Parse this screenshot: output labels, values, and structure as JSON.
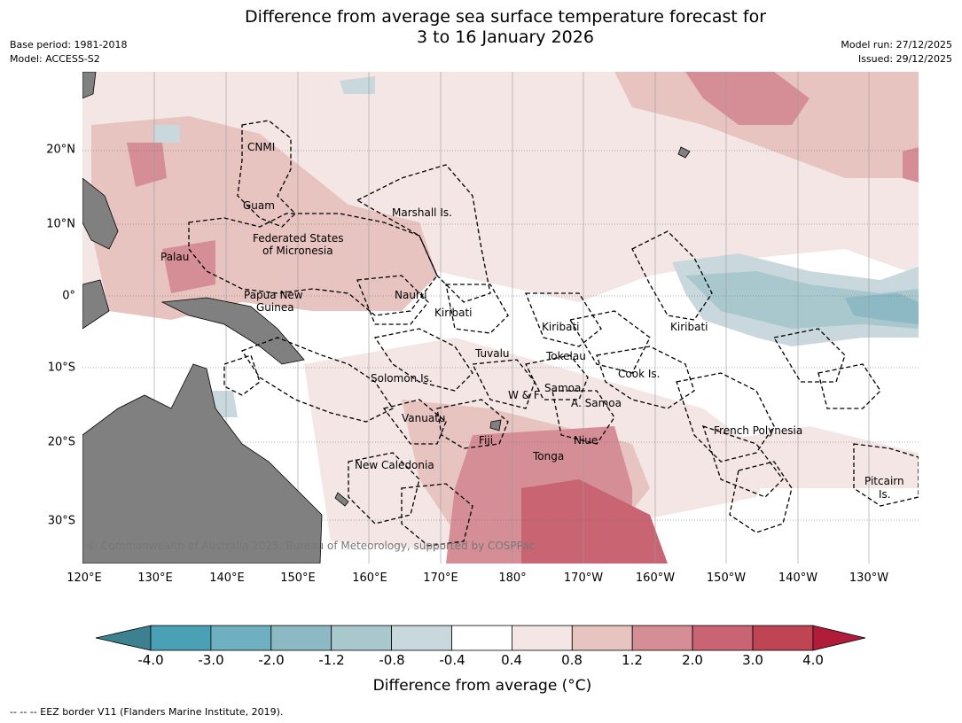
{
  "title_line1": "Difference from average sea surface temperature forecast for",
  "title_line2": "3 to 16 January 2026",
  "meta_left": {
    "base_period": "Base period: 1981-2018",
    "model": "Model: ACCESS-S2"
  },
  "meta_right": {
    "model_run": "Model run: 27/12/2025",
    "issued": "Issued: 29/12/2025"
  },
  "lon_ticks": [
    "120°E",
    "130°E",
    "140°E",
    "150°E",
    "160°E",
    "170°E",
    "180°",
    "170°W",
    "160°W",
    "150°W",
    "140°W",
    "130°W"
  ],
  "lat_ticks": [
    "20°N",
    "10°N",
    "0°",
    "10°S",
    "20°S",
    "30°S"
  ],
  "regions": {
    "cnmi": "CNMI",
    "guam": "Guam",
    "marshall": "Marshall Is.",
    "fsm1": "Federated States",
    "fsm2": "of Micronesia",
    "palau": "Palau",
    "png1": "Papua New",
    "png2": "Guinea",
    "nauru": "Nauru",
    "kiribati_w": "Kiribati",
    "kiribati_c": "Kiribati",
    "kiribati_e": "Kiribati",
    "tuvalu": "Tuvalu",
    "tokelau": "Tokelau",
    "solomon": "Solomon Is.",
    "samoa": "Samoa",
    "wf": "W & F",
    "asamoa": "A. Samoa",
    "cook": "Cook Is.",
    "vanuatu": "Vanuatu",
    "fiji": "Fiji",
    "niue": "Niue",
    "tonga": "Tonga",
    "newcal": "New Caledonia",
    "frpoly": "French Polynesia",
    "pitcairn1": "Pitcairn",
    "pitcairn2": "Is."
  },
  "copyright": "© Commonwealth of Australia 2025, Bureau of Meteorology, supported by COSPPac",
  "colorbar": {
    "labels": [
      "-4.0",
      "-3.0",
      "-2.0",
      "-1.2",
      "-0.8",
      "-0.4",
      "0.4",
      "0.8",
      "1.2",
      "2.0",
      "3.0",
      "4.0"
    ],
    "colors": [
      "#3d8190",
      "#4aa1b5",
      "#6eb0c0",
      "#8cb9c4",
      "#a9c8ce",
      "#c8d8dc",
      "#ffffff",
      "#f3e6e4",
      "#e8c4c1",
      "#d68e96",
      "#c96572",
      "#bf4454",
      "#b01c3a"
    ],
    "title": "Difference from average (°C)"
  },
  "footer": "--  --  -- EEZ border V11 (Flanders Marine Institute, 2019)."
}
